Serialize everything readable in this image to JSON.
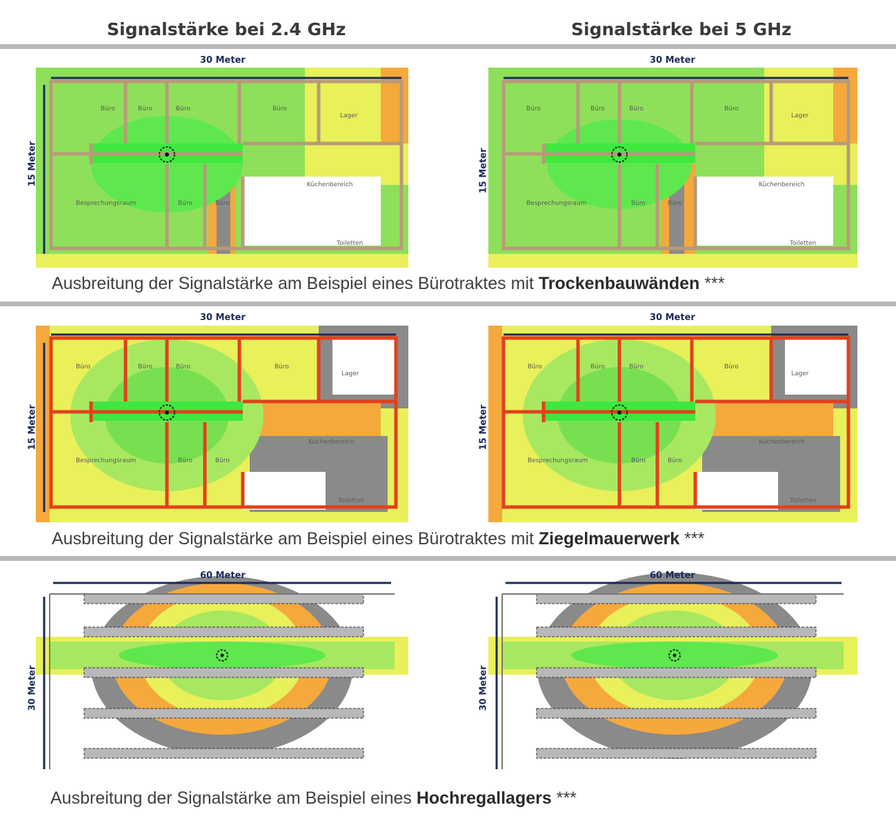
{
  "headers": {
    "col_left": "Signalstärke bei 2.4 GHz",
    "col_right": "Signalstärke bei 5 GHz"
  },
  "captions": [
    {
      "prefix": "Ausbreitung der Signalstärke am Beispiel eines Bürotraktes mit ",
      "bold": "Trockenbauwänden",
      "suffix": " ***"
    },
    {
      "prefix": "Ausbreitung der Signalstärke am Beispiel eines Bürotraktes mit ",
      "bold": "Ziegelmauerwerk",
      "suffix": " ***"
    },
    {
      "prefix": "Ausbreitung der Signalstärke am Beispiel eines ",
      "bold": "Hochregallagers",
      "suffix": " ***"
    }
  ],
  "office": {
    "width_label": "30 Meter",
    "height_label": "15 Meter",
    "rooms": {
      "buero": "Büro",
      "lager": "Lager",
      "besprechung": "Besprechungsraum",
      "kueche": "Küchenbereich",
      "toiletten": "Toiletten"
    }
  },
  "warehouse": {
    "width_label": "60 Meter",
    "height_label": "30 Meter"
  },
  "colors": {
    "strong": "#3ee83e",
    "good": "#8fe05a",
    "medium": "#e8f05a",
    "weak": "#f5a83c",
    "poor": "#8a8a8a",
    "drywall": "#b89a78",
    "brick": "#e2401c",
    "dimension": "#1a2a5a"
  }
}
